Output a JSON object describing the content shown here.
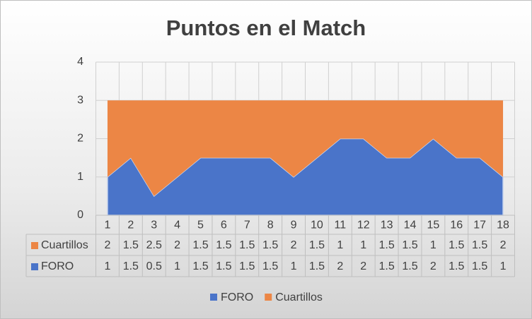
{
  "chart_data": {
    "type": "stacked_area",
    "title": "Puntos en el Match",
    "categories": [
      "1",
      "2",
      "3",
      "4",
      "5",
      "6",
      "7",
      "8",
      "9",
      "10",
      "11",
      "12",
      "13",
      "14",
      "15",
      "16",
      "17",
      "18"
    ],
    "series": [
      {
        "name": "FORO",
        "color": "#4a74c9",
        "values": [
          1,
          1.5,
          0.5,
          1,
          1.5,
          1.5,
          1.5,
          1.5,
          1,
          1.5,
          2,
          2,
          1.5,
          1.5,
          2,
          1.5,
          1.5,
          1
        ]
      },
      {
        "name": "Cuartillos",
        "color": "#ec8645",
        "values": [
          2,
          1.5,
          2.5,
          2,
          1.5,
          1.5,
          1.5,
          1.5,
          2,
          1.5,
          1,
          1,
          1.5,
          1.5,
          1,
          1.5,
          1.5,
          2
        ]
      }
    ],
    "ylim": [
      0,
      4
    ],
    "yticks": [
      0,
      1,
      2,
      3,
      4
    ],
    "grid": true,
    "legend": "bottom"
  }
}
